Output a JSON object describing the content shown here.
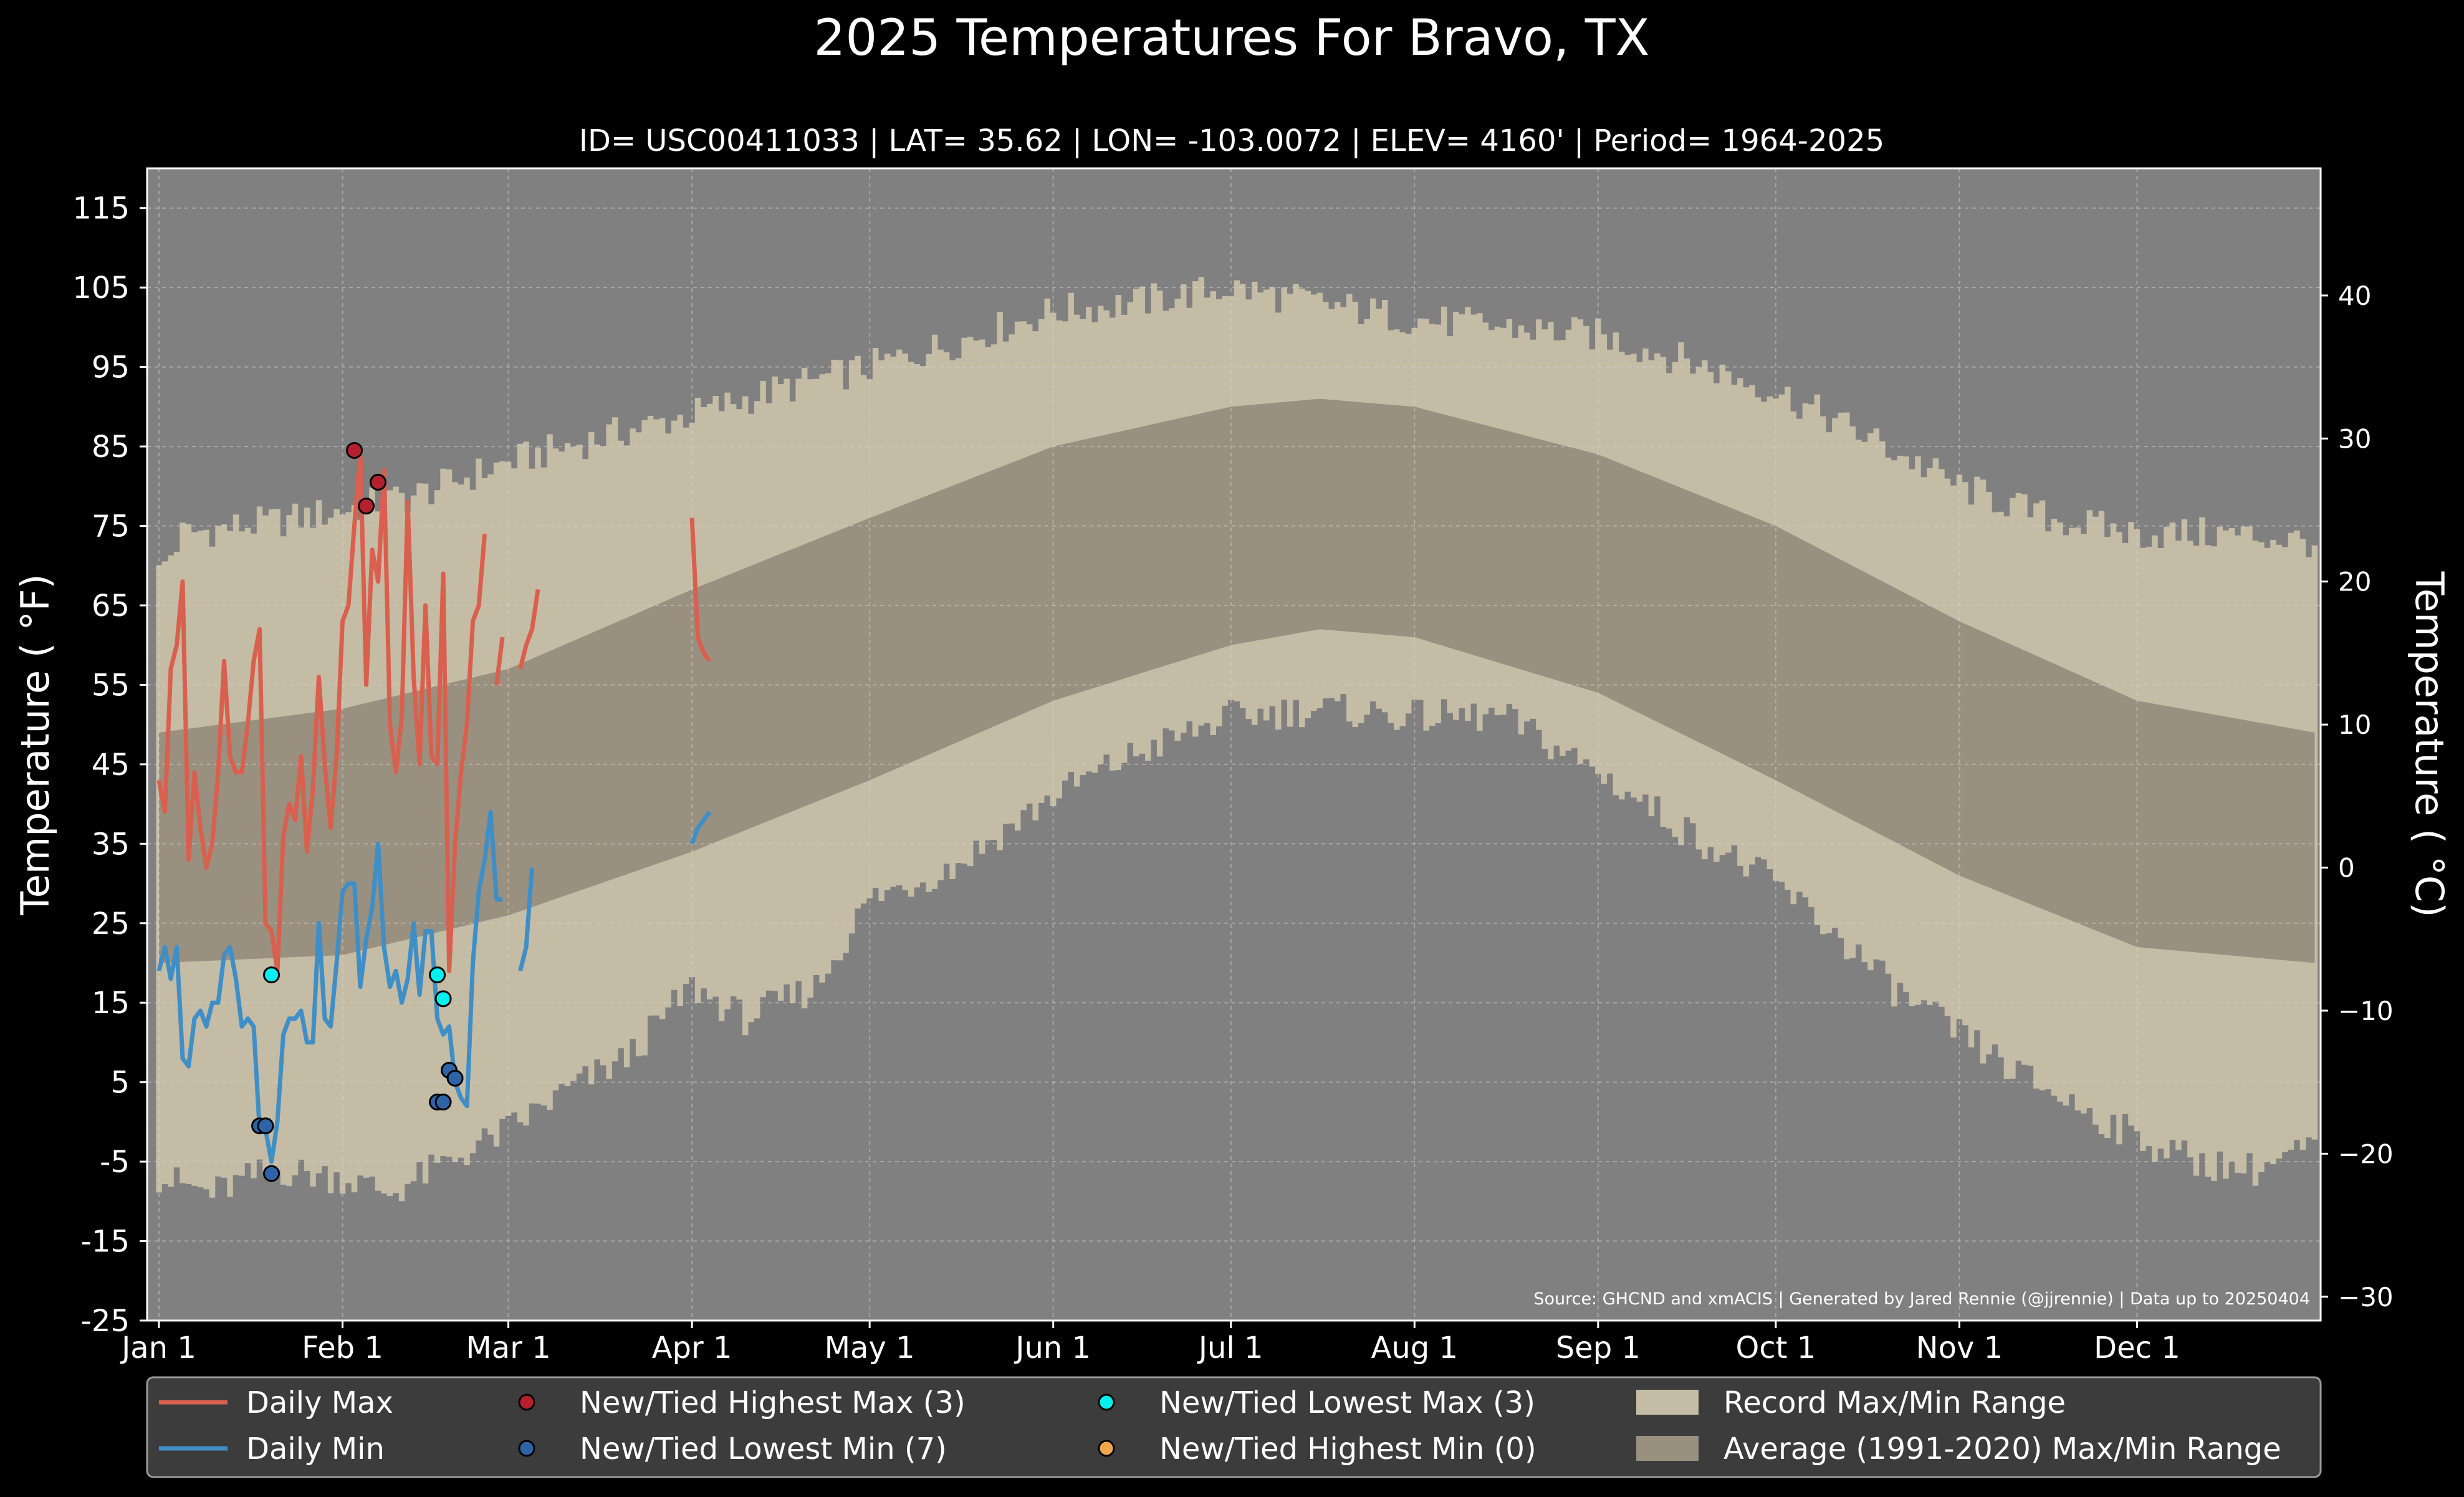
{
  "chart_data": {
    "type": "line",
    "title": "2025 Temperatures For Bravo, TX",
    "subtitle": "ID= USC00411033 | LAT= 35.62 | LON= -103.0072 | ELEV= 4160' | Period= 1964-2025",
    "ylabel_left": "Temperature ($^\\circ$F)",
    "ylabel_left_display": "Temperature ( °F)",
    "ylabel_right_display": "Temperature ( °C)",
    "source": "Source: GHCND and xmACIS | Generated by Jared Rennie (@jjrennie) | Data up to 20250404",
    "x_axis": {
      "range_day_of_year": [
        -1,
        366
      ],
      "ticks": [
        {
          "doy": 1,
          "label": "Jan 1"
        },
        {
          "doy": 32,
          "label": "Feb 1"
        },
        {
          "doy": 60,
          "label": "Mar 1"
        },
        {
          "doy": 91,
          "label": "Apr 1"
        },
        {
          "doy": 121,
          "label": "May 1"
        },
        {
          "doy": 152,
          "label": "Jun 1"
        },
        {
          "doy": 182,
          "label": "Jul 1"
        },
        {
          "doy": 213,
          "label": "Aug 1"
        },
        {
          "doy": 244,
          "label": "Sep 1"
        },
        {
          "doy": 274,
          "label": "Oct 1"
        },
        {
          "doy": 305,
          "label": "Nov 1"
        },
        {
          "doy": 335,
          "label": "Dec 1"
        }
      ]
    },
    "y_axis_f": {
      "range": [
        -25,
        120
      ],
      "ticks": [
        -25,
        -15,
        -5,
        5,
        15,
        25,
        35,
        45,
        55,
        65,
        75,
        85,
        95,
        105,
        115
      ]
    },
    "y_axis_c": {
      "ticks": [
        "−30",
        "−20",
        "−10",
        "0",
        "10",
        "20",
        "30",
        "40"
      ],
      "tick_values": [
        -30,
        -20,
        -10,
        0,
        10,
        20,
        30,
        40
      ]
    },
    "grid": true,
    "legend_position": "bottom",
    "colors": {
      "background": "#000000",
      "plot_background": "#808080",
      "record_range": "#c5bca6",
      "average_range": "#9a9080",
      "daily_max": "#d9604e",
      "daily_min": "#3f8fc6",
      "highest_max_marker": "#b5202e",
      "lowest_min_marker": "#2f63a8",
      "lowest_max_marker": "#00f0f0",
      "highest_min_marker": "#f5a64a",
      "legend_background": "#3c3c3c"
    },
    "legend": [
      {
        "key": "daily_max",
        "label": "Daily Max",
        "kind": "line"
      },
      {
        "key": "daily_min",
        "label": "Daily Min",
        "kind": "line"
      },
      {
        "key": "highest_max_marker",
        "label": "New/Tied Highest Max (3)",
        "kind": "dot"
      },
      {
        "key": "lowest_min_marker",
        "label": "New/Tied Lowest Min (7)",
        "kind": "dot"
      },
      {
        "key": "lowest_max_marker",
        "label": "New/Tied Lowest Max (3)",
        "kind": "dot"
      },
      {
        "key": "highest_min_marker",
        "label": "New/Tied Highest Min (0)",
        "kind": "dot"
      },
      {
        "key": "record_range",
        "label": "Record Max/Min Range",
        "kind": "patch"
      },
      {
        "key": "average_range",
        "label": "Average (1991-2020) Max/Min Range",
        "kind": "patch"
      }
    ],
    "record_max_anchors": [
      [
        1,
        69
      ],
      [
        5,
        74
      ],
      [
        15,
        75
      ],
      [
        25,
        76
      ],
      [
        32,
        77
      ],
      [
        45,
        79
      ],
      [
        60,
        83
      ],
      [
        75,
        86
      ],
      [
        91,
        89
      ],
      [
        105,
        92
      ],
      [
        121,
        95
      ],
      [
        135,
        98
      ],
      [
        152,
        102
      ],
      [
        165,
        103
      ],
      [
        182,
        105
      ],
      [
        197,
        103
      ],
      [
        213,
        101
      ],
      [
        228,
        100
      ],
      [
        244,
        99
      ],
      [
        258,
        96
      ],
      [
        274,
        92
      ],
      [
        290,
        86
      ],
      [
        305,
        80
      ],
      [
        320,
        76
      ],
      [
        335,
        74
      ],
      [
        350,
        74
      ],
      [
        365,
        73
      ]
    ],
    "record_min_anchors": [
      [
        1,
        -7
      ],
      [
        10,
        -9
      ],
      [
        20,
        -6
      ],
      [
        32,
        -7
      ],
      [
        40,
        -9
      ],
      [
        50,
        -5
      ],
      [
        60,
        -1
      ],
      [
        70,
        4
      ],
      [
        80,
        8
      ],
      [
        91,
        17
      ],
      [
        100,
        13
      ],
      [
        112,
        17
      ],
      [
        121,
        28
      ],
      [
        135,
        32
      ],
      [
        152,
        41
      ],
      [
        165,
        46
      ],
      [
        182,
        51
      ],
      [
        197,
        52
      ],
      [
        213,
        51
      ],
      [
        228,
        51
      ],
      [
        244,
        44
      ],
      [
        258,
        37
      ],
      [
        274,
        30
      ],
      [
        285,
        23
      ],
      [
        295,
        16
      ],
      [
        305,
        11
      ],
      [
        315,
        6
      ],
      [
        325,
        2
      ],
      [
        335,
        -2
      ],
      [
        345,
        -5
      ],
      [
        355,
        -6
      ],
      [
        365,
        -3
      ]
    ],
    "record_jitter": 2.2,
    "average_max_anchors": [
      [
        1,
        49
      ],
      [
        32,
        52
      ],
      [
        60,
        57
      ],
      [
        91,
        67
      ],
      [
        121,
        76
      ],
      [
        152,
        85
      ],
      [
        182,
        90
      ],
      [
        197,
        91
      ],
      [
        213,
        90
      ],
      [
        244,
        84
      ],
      [
        274,
        75
      ],
      [
        305,
        63
      ],
      [
        335,
        53
      ],
      [
        365,
        49
      ]
    ],
    "average_min_anchors": [
      [
        1,
        20
      ],
      [
        32,
        21
      ],
      [
        60,
        26
      ],
      [
        91,
        34
      ],
      [
        121,
        43
      ],
      [
        152,
        53
      ],
      [
        182,
        60
      ],
      [
        197,
        62
      ],
      [
        213,
        61
      ],
      [
        244,
        54
      ],
      [
        274,
        43
      ],
      [
        305,
        31
      ],
      [
        335,
        22
      ],
      [
        365,
        20
      ]
    ],
    "series": [
      {
        "name": "Daily Max",
        "key": "daily_max",
        "x": [
          1,
          2,
          3,
          4,
          5,
          6,
          7,
          8,
          9,
          10,
          11,
          12,
          13,
          14,
          15,
          16,
          17,
          18,
          19,
          20,
          21,
          22,
          23,
          24,
          25,
          26,
          27,
          28,
          29,
          30,
          31,
          32,
          33,
          34,
          35,
          36,
          37,
          38,
          39,
          40,
          41,
          42,
          43,
          44,
          45,
          46,
          47,
          48,
          49,
          50,
          51,
          52,
          53,
          54,
          55,
          56,
          null,
          58,
          59,
          null,
          62,
          63,
          64,
          65,
          null,
          91,
          92,
          93,
          94
        ],
        "y": [
          43,
          39,
          57,
          60,
          68,
          33,
          44,
          37,
          32,
          35,
          44,
          58,
          46,
          44,
          44,
          50,
          58,
          62,
          25,
          24,
          19,
          36,
          40,
          38,
          46,
          34,
          42,
          56,
          45,
          37,
          46,
          63,
          65,
          75,
          84,
          55,
          72,
          68,
          82,
          50,
          44,
          51,
          78,
          56,
          45,
          65,
          46,
          45,
          69,
          19,
          35,
          44,
          50,
          63,
          65,
          74,
          null,
          55,
          61,
          null,
          57,
          60,
          62,
          67,
          null,
          76,
          61,
          59,
          58
        ]
      },
      {
        "name": "Daily Min",
        "key": "daily_min",
        "x": [
          1,
          2,
          3,
          4,
          5,
          6,
          7,
          8,
          9,
          10,
          11,
          12,
          13,
          14,
          15,
          16,
          17,
          18,
          19,
          20,
          21,
          22,
          23,
          24,
          25,
          26,
          27,
          28,
          29,
          30,
          31,
          32,
          33,
          34,
          35,
          36,
          37,
          38,
          39,
          40,
          41,
          42,
          43,
          44,
          45,
          46,
          47,
          48,
          49,
          50,
          51,
          52,
          53,
          54,
          55,
          56,
          57,
          58,
          59,
          null,
          62,
          63,
          64,
          null,
          91,
          92,
          93,
          94
        ],
        "y": [
          19,
          22,
          18,
          22,
          8,
          7,
          13,
          14,
          12,
          15,
          15,
          21,
          22,
          18,
          12,
          13,
          12,
          -1,
          -1,
          -5,
          0,
          11,
          13,
          13,
          14,
          10,
          10,
          25,
          13,
          12,
          20,
          29,
          30,
          30,
          17,
          23,
          27,
          35,
          22,
          17,
          19,
          15,
          18,
          25,
          16,
          24,
          24,
          13,
          11,
          12,
          5,
          3,
          2,
          20,
          29,
          33,
          39,
          28,
          28,
          null,
          19,
          22,
          32,
          null,
          35,
          37,
          38,
          39
        ]
      }
    ],
    "markers": {
      "highest_max": [
        [
          34,
          84.5
        ],
        [
          36,
          77.5
        ],
        [
          38,
          80.5
        ]
      ],
      "lowest_min": [
        [
          18,
          -0.5
        ],
        [
          19,
          -0.5
        ],
        [
          20,
          -6.5
        ],
        [
          48,
          2.5
        ],
        [
          49,
          2.5
        ],
        [
          50,
          6.5
        ],
        [
          51,
          5.5
        ]
      ],
      "lowest_max": [
        [
          20,
          18.5
        ],
        [
          48,
          18.5
        ],
        [
          49,
          15.5
        ]
      ],
      "highest_min": []
    }
  }
}
